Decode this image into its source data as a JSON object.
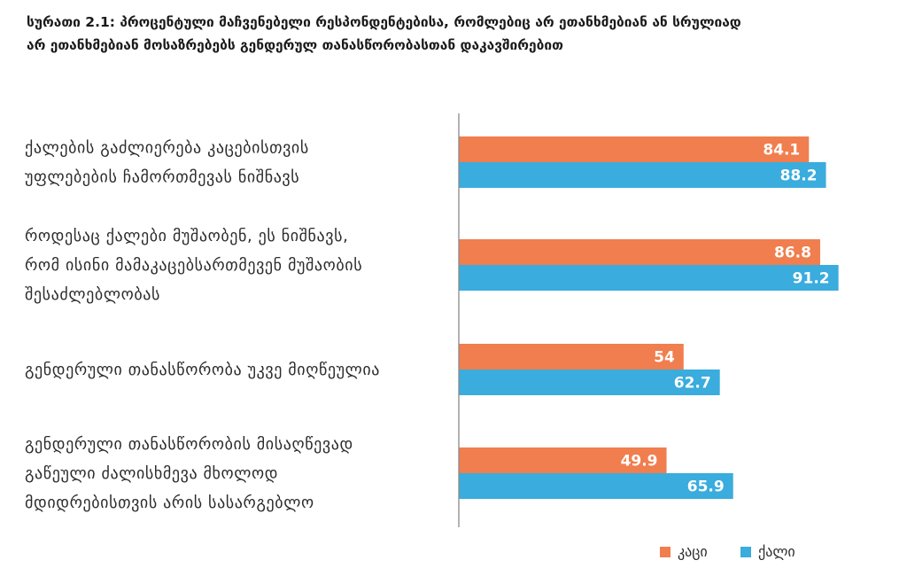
{
  "chart_data": {
    "type": "bar",
    "orientation": "horizontal",
    "title": "სურათი 2.1: პროცენტული მაჩვენებელი რესპონდენტებისა, რომლებიც არ ეთანხმებიან ან სრულიად არ ეთანხმებიან მოსაზრებებს გენდერულ თანასწორობასთან დაკავშირებით",
    "title_lines": [
      "სურათი 2.1:  პროცენტული მაჩვენებელი რესპონდენტებისა, რომლებიც არ ეთანხმებიან  ან სრულიად",
      "არ ეთანხმებიან მოსაზრებებს გენდერულ თანასწორობასთან დაკავშირებით"
    ],
    "categories": [
      [
        "ქალების გაძლიერება კაცებისთვის",
        "უფლებების ჩამორთმევას ნიშნავს"
      ],
      [
        "როდესაც ქალები მუშაობენ, ეს ნიშნავს,",
        "რომ ისინი მამაკაცებსართმევენ მუშაობის",
        "შესაძლებლობას"
      ],
      [
        "გენდერული თანასწორობა უკვე მიღწეულია"
      ],
      [
        "გენდერული თანასწორობის მისაღწევად",
        "გაწეული ძალისხმევა მხოლოდ",
        "მდიდრებისთვის არის სასარგებლო"
      ]
    ],
    "series": [
      {
        "name": "კაცი",
        "color": "#F07E4E",
        "values": [
          84.1,
          86.8,
          54,
          49.9
        ],
        "labels": [
          "84.1",
          "86.8",
          "54",
          "49.9"
        ]
      },
      {
        "name": "ქალი",
        "color": "#3AACDD",
        "values": [
          88.2,
          91.2,
          62.7,
          65.9
        ],
        "labels": [
          "88.2",
          "91.2",
          "62.7",
          "65.9"
        ]
      }
    ],
    "xlim": [
      0,
      100
    ],
    "grid": false,
    "legend_position": "bottom-right",
    "axis_color": "#8a8a8a"
  }
}
